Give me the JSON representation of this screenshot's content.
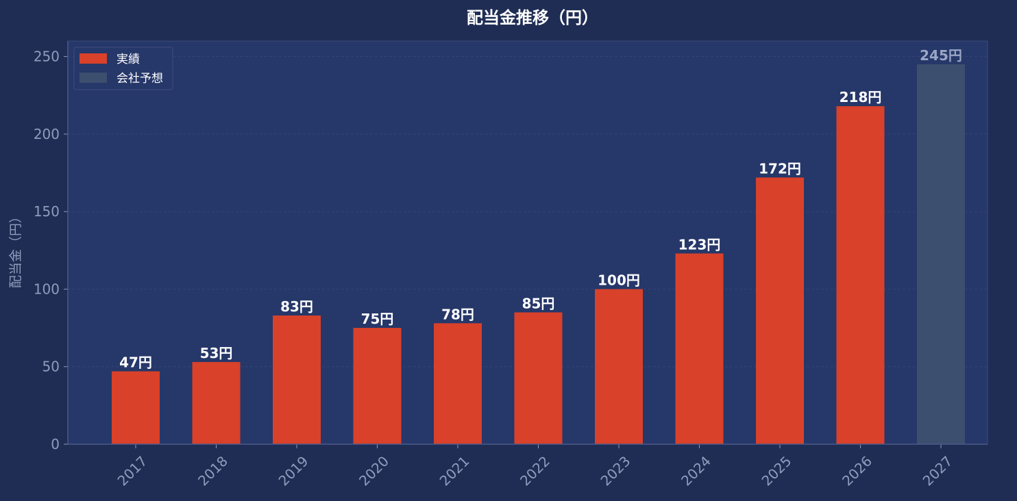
{
  "colors": {
    "background": "#1f2d55",
    "plot_background": "#263769",
    "actual": "#d9412a",
    "forecast": "#3d4f6e",
    "axis_text": "#8f9cbc",
    "label_actual": "#ffffff",
    "label_forecast": "#9aa6c4",
    "title": "#ffffff"
  },
  "chart_data": {
    "type": "bar",
    "title": "配当金推移（円）",
    "xlabel": "",
    "ylabel": "配当金（円）",
    "ylim": [
      0,
      260
    ],
    "yticks": [
      0,
      50,
      100,
      150,
      200,
      250
    ],
    "categories": [
      "2017",
      "2018",
      "2019",
      "2020",
      "2021",
      "2022",
      "2023",
      "2024",
      "2025",
      "2026",
      "2027"
    ],
    "values": [
      47,
      53,
      83,
      75,
      78,
      85,
      100,
      123,
      172,
      218,
      245
    ],
    "value_labels": [
      "47円",
      "53円",
      "83円",
      "75円",
      "78円",
      "85円",
      "100円",
      "123円",
      "172円",
      "218円",
      "245円"
    ],
    "bar_kind": [
      "actual",
      "actual",
      "actual",
      "actual",
      "actual",
      "actual",
      "actual",
      "actual",
      "actual",
      "actual",
      "forecast"
    ],
    "legend": {
      "placement": "top-left",
      "entries": [
        {
          "name": "実績",
          "kind": "actual"
        },
        {
          "name": "会社予想",
          "kind": "forecast"
        }
      ]
    },
    "grid": true
  }
}
